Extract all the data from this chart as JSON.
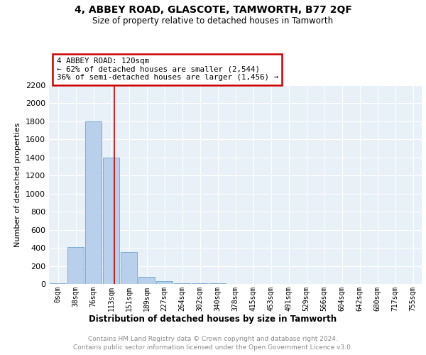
{
  "title": "4, ABBEY ROAD, GLASCOTE, TAMWORTH, B77 2QF",
  "subtitle": "Size of property relative to detached houses in Tamworth",
  "xlabel": "Distribution of detached houses by size in Tamworth",
  "ylabel": "Number of detached properties",
  "footer_line1": "Contains HM Land Registry data © Crown copyright and database right 2024.",
  "footer_line2": "Contains public sector information licensed under the Open Government Licence v3.0.",
  "bin_labels": [
    "0sqm",
    "38sqm",
    "76sqm",
    "113sqm",
    "151sqm",
    "189sqm",
    "227sqm",
    "264sqm",
    "302sqm",
    "340sqm",
    "378sqm",
    "415sqm",
    "453sqm",
    "491sqm",
    "529sqm",
    "566sqm",
    "604sqm",
    "642sqm",
    "680sqm",
    "717sqm",
    "755sqm"
  ],
  "bar_values": [
    5,
    410,
    1800,
    1400,
    350,
    80,
    30,
    10,
    5,
    5,
    0,
    0,
    0,
    0,
    0,
    0,
    0,
    0,
    0,
    0,
    0
  ],
  "bar_color": "#b8d0eb",
  "bar_edge_color": "#7aadd4",
  "property_label": "4 ABBEY ROAD: 120sqm",
  "annotation_line1": "← 62% of detached houses are smaller (2,544)",
  "annotation_line2": "36% of semi-detached houses are larger (1,456) →",
  "vline_color": "#cc0000",
  "vline_position": 3.18,
  "annotation_box_color": "#cc0000",
  "ylim": [
    0,
    2200
  ],
  "plot_bg_color": "#e8f0f8",
  "grid_color": "#ffffff",
  "yticks": [
    0,
    200,
    400,
    600,
    800,
    1000,
    1200,
    1400,
    1600,
    1800,
    2000,
    2200
  ]
}
